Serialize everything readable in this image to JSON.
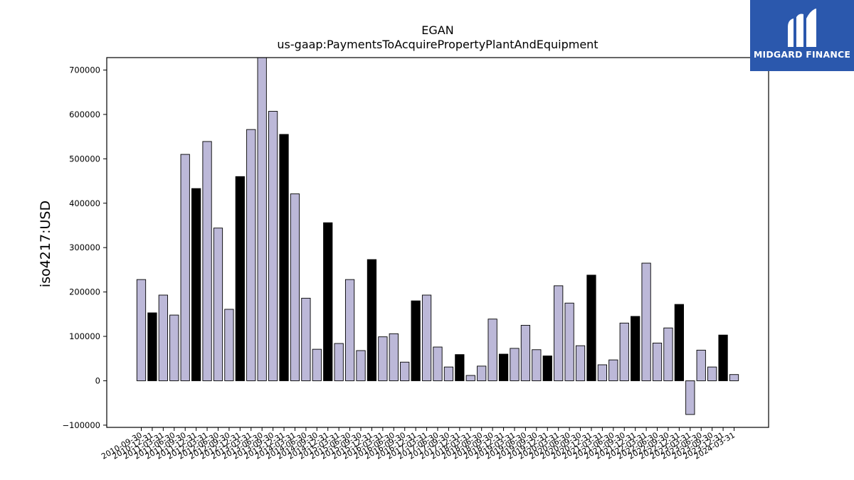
{
  "logo": {
    "text": "MIDGARD FINANCE",
    "icon": "midgard-m-logo-icon",
    "background": "#2b58ad"
  },
  "chart_data": {
    "type": "bar",
    "title": "EGAN",
    "subtitle": "us-gaap:PaymentsToAcquirePropertyPlantAndEquipment",
    "ylabel": "iso4217:USD",
    "xlabel": "",
    "ylim": [
      -105000,
      728000
    ],
    "yticks": [
      -100000,
      0,
      100000,
      200000,
      300000,
      400000,
      500000,
      600000,
      700000
    ],
    "grid": false,
    "colors": {
      "light": "#bcb8d8",
      "dark": "#000000",
      "edge": "#000000"
    },
    "categories": [
      "2010-09-30",
      "2010-12-31",
      "2011-03-31",
      "2011-06-30",
      "2011-09-30",
      "2011-12-31",
      "2012-03-31",
      "2012-06-30",
      "2012-09-30",
      "2012-12-31",
      "2013-03-31",
      "2013-06-30",
      "2013-09-30",
      "2013-12-31",
      "2014-03-31",
      "2014-06-30",
      "2014-09-30",
      "2014-12-31",
      "2015-03-31",
      "2015-06-30",
      "2015-09-30",
      "2015-12-31",
      "2016-03-31",
      "2016-06-30",
      "2016-09-30",
      "2016-12-31",
      "2017-03-31",
      "2017-06-30",
      "2017-09-30",
      "2017-12-31",
      "2018-03-31",
      "2018-06-30",
      "2018-09-30",
      "2018-12-31",
      "2019-03-31",
      "2019-06-30",
      "2019-09-30",
      "2019-12-31",
      "2020-03-31",
      "2020-06-30",
      "2020-09-30",
      "2020-12-31",
      "2021-03-31",
      "2021-06-30",
      "2021-09-30",
      "2021-12-31",
      "2022-03-31",
      "2022-06-30",
      "2022-09-30",
      "2022-12-31",
      "2023-03-31",
      "2023-06-30",
      "2023-09-30",
      "2023-12-31",
      "2024-03-31"
    ],
    "values": [
      228000,
      153000,
      193000,
      148000,
      510000,
      433000,
      539000,
      344000,
      161000,
      460000,
      566000,
      735000,
      607000,
      555000,
      421000,
      186000,
      71000,
      356000,
      84000,
      228000,
      68000,
      273000,
      99000,
      106000,
      42000,
      180000,
      193000,
      76000,
      31000,
      59000,
      12000,
      33000,
      139000,
      60000,
      73000,
      125000,
      70000,
      56000,
      214000,
      175000,
      79000,
      238000,
      36000,
      47000,
      130000,
      145000,
      265000,
      85000,
      119000,
      172000,
      -76000,
      69000,
      31000,
      103000,
      14000
    ],
    "dark_bars": [
      1,
      5,
      9,
      13,
      17,
      21,
      25,
      29,
      33,
      37,
      41,
      45,
      49,
      53
    ]
  }
}
